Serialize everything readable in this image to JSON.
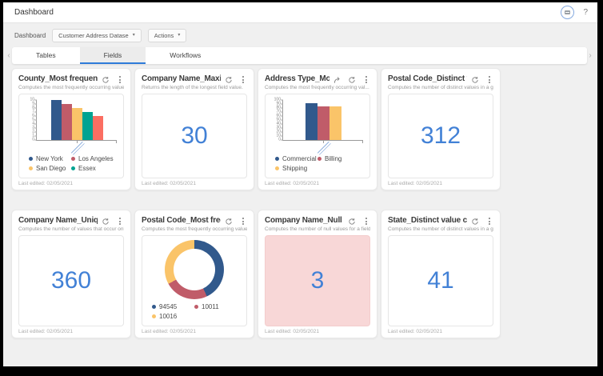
{
  "header": {
    "title": "Dashboard",
    "help_label": "?"
  },
  "toolbar": {
    "context_label": "Dashboard",
    "dataset_value": "Customer Address Datase",
    "actions_label": "Actions",
    "caret": "▾"
  },
  "tabs": {
    "items": [
      {
        "label": "Tables",
        "selected": false
      },
      {
        "label": "Fields",
        "selected": true
      },
      {
        "label": "Workflows",
        "selected": false
      }
    ],
    "chevron_left": "‹",
    "chevron_right": "›",
    "accent_color": "#2e7bd9"
  },
  "colors": {
    "palette": [
      "#31598C",
      "#C05C69",
      "#FAC469",
      "#00A392",
      "#FB6E62"
    ],
    "big_number": "#4281D6",
    "null_highlight_bg": "#F8D7D7",
    "page_bg": "#F0F0F0"
  },
  "cards": [
    {
      "title": "County_Most frequent values",
      "subtitle": "Computes the most frequently occurring values for ...",
      "last_edited": "Last edited: 02/05/2021",
      "type": "bar",
      "chart": {
        "type": "bar",
        "y_max": 10,
        "y_step": 1,
        "values": [
          10,
          9,
          8,
          7,
          6
        ],
        "colors": [
          "#31598C",
          "#C05C69",
          "#FAC469",
          "#00A392",
          "#FB6E62"
        ],
        "legend": [
          {
            "label": "New York",
            "color": "#31598C"
          },
          {
            "label": "Los Angeles",
            "color": "#C05C69"
          },
          {
            "label": "San Diego",
            "color": "#FAC469"
          },
          {
            "label": "Essex",
            "color": "#00A392"
          }
        ]
      }
    },
    {
      "title": "Company Name_Maximum ...",
      "subtitle": "Returns the length of the longest field value.",
      "last_edited": "Last edited: 02/05/2021",
      "type": "number",
      "value": "30"
    },
    {
      "title": "Address Type_Most fre...",
      "subtitle": "Computes the most frequently occurring val...",
      "last_edited": "Last edited: 02/05/2021",
      "type": "bar",
      "has_share_icon": true,
      "chart": {
        "type": "bar",
        "y_max": 100,
        "y_step": 10,
        "values": [
          92,
          85,
          84
        ],
        "colors": [
          "#31598C",
          "#C05C69",
          "#FAC469"
        ],
        "legend": [
          {
            "label": "Commercial",
            "color": "#31598C"
          },
          {
            "label": "Billing",
            "color": "#C05C69"
          },
          {
            "label": "Shipping",
            "color": "#FAC469"
          }
        ]
      }
    },
    {
      "title": "Postal Code_Distinct value ...",
      "subtitle": "Computes the number of distinct values in a given ...",
      "last_edited": "Last edited: 02/05/2021",
      "type": "number",
      "value": "312"
    },
    {
      "title": "Company Name_Unique co...",
      "subtitle": "Computes the number of values that occur only once.",
      "last_edited": "Last edited: 02/05/2021",
      "type": "number",
      "value": "360"
    },
    {
      "title": "Postal Code_Most frequent...",
      "subtitle": "Computes the most frequently occurring values for ...",
      "last_edited": "Last edited: 02/05/2021",
      "type": "donut",
      "chart": {
        "type": "donut",
        "segments": [
          {
            "label": "94545",
            "color": "#31598C",
            "pct": 43
          },
          {
            "label": "10011",
            "color": "#C05C69",
            "pct": 24
          },
          {
            "label": "10016",
            "color": "#FAC469",
            "pct": 33
          }
        ]
      }
    },
    {
      "title": "Company Name_Null count",
      "subtitle": "Computes the number of null values for a field.",
      "last_edited": "Last edited: 02/05/2021",
      "type": "number",
      "value": "3",
      "highlight_bg": "#F8D7D7"
    },
    {
      "title": "State_Distinct value count",
      "subtitle": "Computes the number of distinct values in a given ...",
      "last_edited": "Last edited: 02/05/2021",
      "type": "number",
      "value": "41"
    }
  ]
}
